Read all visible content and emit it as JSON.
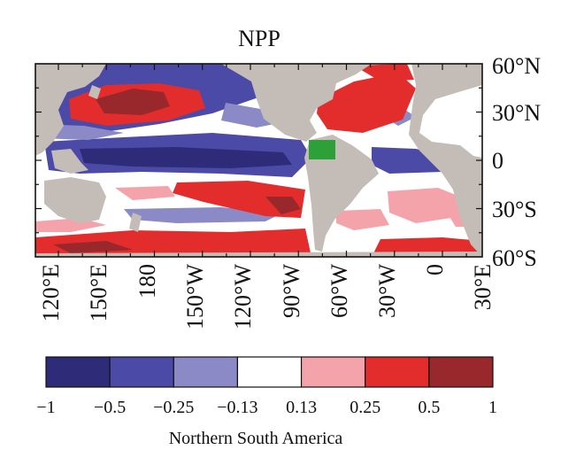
{
  "chart_data": {
    "type": "heatmap",
    "title": "NPP",
    "subtitle": "",
    "xlabel": "",
    "ylabel": "",
    "lon_ticks": [
      "120°E",
      "150°E",
      "180",
      "150°W",
      "120°W",
      "90°W",
      "60°W",
      "30°W",
      "0",
      "30°E"
    ],
    "lat_ticks": [
      "60°N",
      "30°N",
      "0",
      "30°S",
      "60°S"
    ],
    "lon_range": [
      110,
      390
    ],
    "lat_range": [
      -60,
      60
    ],
    "colorbar": {
      "bounds": [
        "−1",
        "−0.5",
        "−0.25",
        "−0.13",
        "0.13",
        "0.25",
        "0.5",
        "1"
      ],
      "colors": [
        "#2e2b78",
        "#4b4aa7",
        "#8b89c6",
        "#ffffff",
        "#f4a3ab",
        "#e32c2c",
        "#98282b"
      ],
      "caption": "Northern South America"
    },
    "land_color": "#c4bcb7",
    "region_box": {
      "color": "#2ea03a",
      "lon": [
        286,
        304
      ],
      "lat": [
        2,
        12
      ]
    }
  }
}
